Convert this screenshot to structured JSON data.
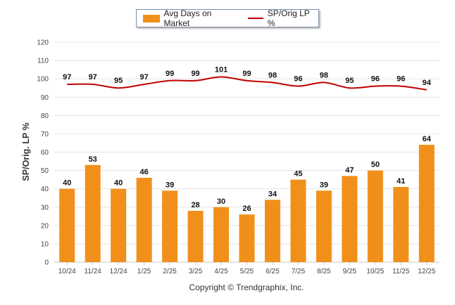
{
  "chart_data": {
    "type": "bar+line",
    "categories": [
      "10/24",
      "11/24",
      "12/24",
      "1/25",
      "2/25",
      "3/25",
      "4/25",
      "5/25",
      "6/25",
      "7/25",
      "8/25",
      "9/25",
      "10/25",
      "11/25",
      "12/25"
    ],
    "series": [
      {
        "name": "Avg Days on Market",
        "kind": "bar",
        "color": "#f0901a",
        "values": [
          40,
          53,
          40,
          46,
          39,
          28,
          30,
          26,
          34,
          45,
          39,
          47,
          50,
          41,
          64
        ]
      },
      {
        "name": "SP/Orig LP %",
        "kind": "line",
        "color": "#c00000",
        "values": [
          97,
          97,
          95,
          97,
          99,
          99,
          101,
          99,
          98,
          96,
          98,
          95,
          96,
          96,
          94
        ]
      }
    ],
    "ylabel": "SP/Orig. LP %",
    "ylim": [
      0,
      120
    ],
    "yticks": [
      0,
      10,
      20,
      30,
      40,
      50,
      60,
      70,
      80,
      90,
      100,
      110,
      120
    ],
    "grid": true,
    "legend_position": "top-center"
  },
  "footer": {
    "copyright": "Copyright © Trendgraphix, Inc."
  }
}
